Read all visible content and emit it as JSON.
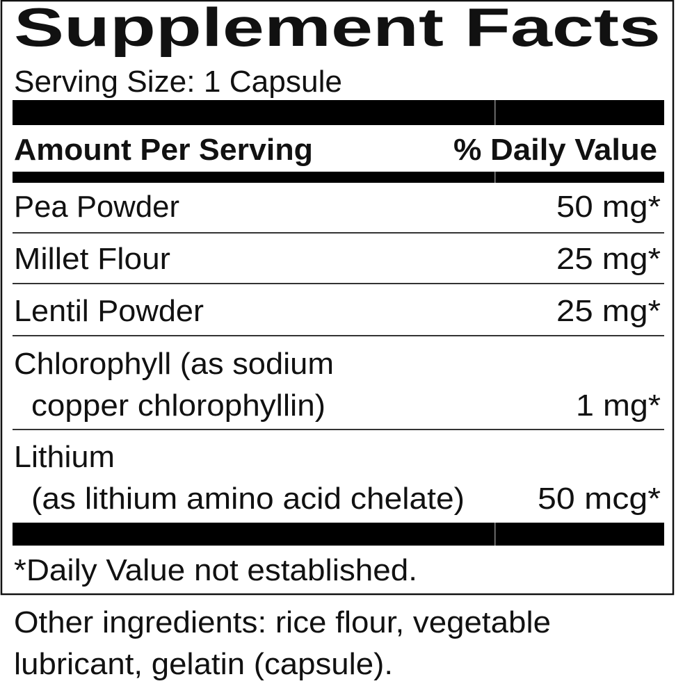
{
  "title": "Supplement Facts",
  "serving_size": "Serving Size: 1 Capsule",
  "header": {
    "amount": "Amount Per Serving",
    "daily_value": "% Daily Value"
  },
  "rows": [
    {
      "name": "Pea Powder",
      "amount": "50 mg*"
    },
    {
      "name": "Millet Flour",
      "amount": "25 mg*"
    },
    {
      "name": "Lentil Powder",
      "amount": "25 mg*"
    },
    {
      "name": "Chlorophyll (as sodium",
      "name_line2": "copper chlorophyllin)",
      "amount": "1 mg*"
    },
    {
      "name": "Lithium",
      "name_line2": "(as lithium amino acid chelate)",
      "amount": "50 mcg*"
    }
  ],
  "footnote": "*Daily Value not established.",
  "other_ingredients": {
    "line1": "Other ingredients: rice flour, vegetable",
    "line2": "lubricant, gelatin (capsule)."
  }
}
